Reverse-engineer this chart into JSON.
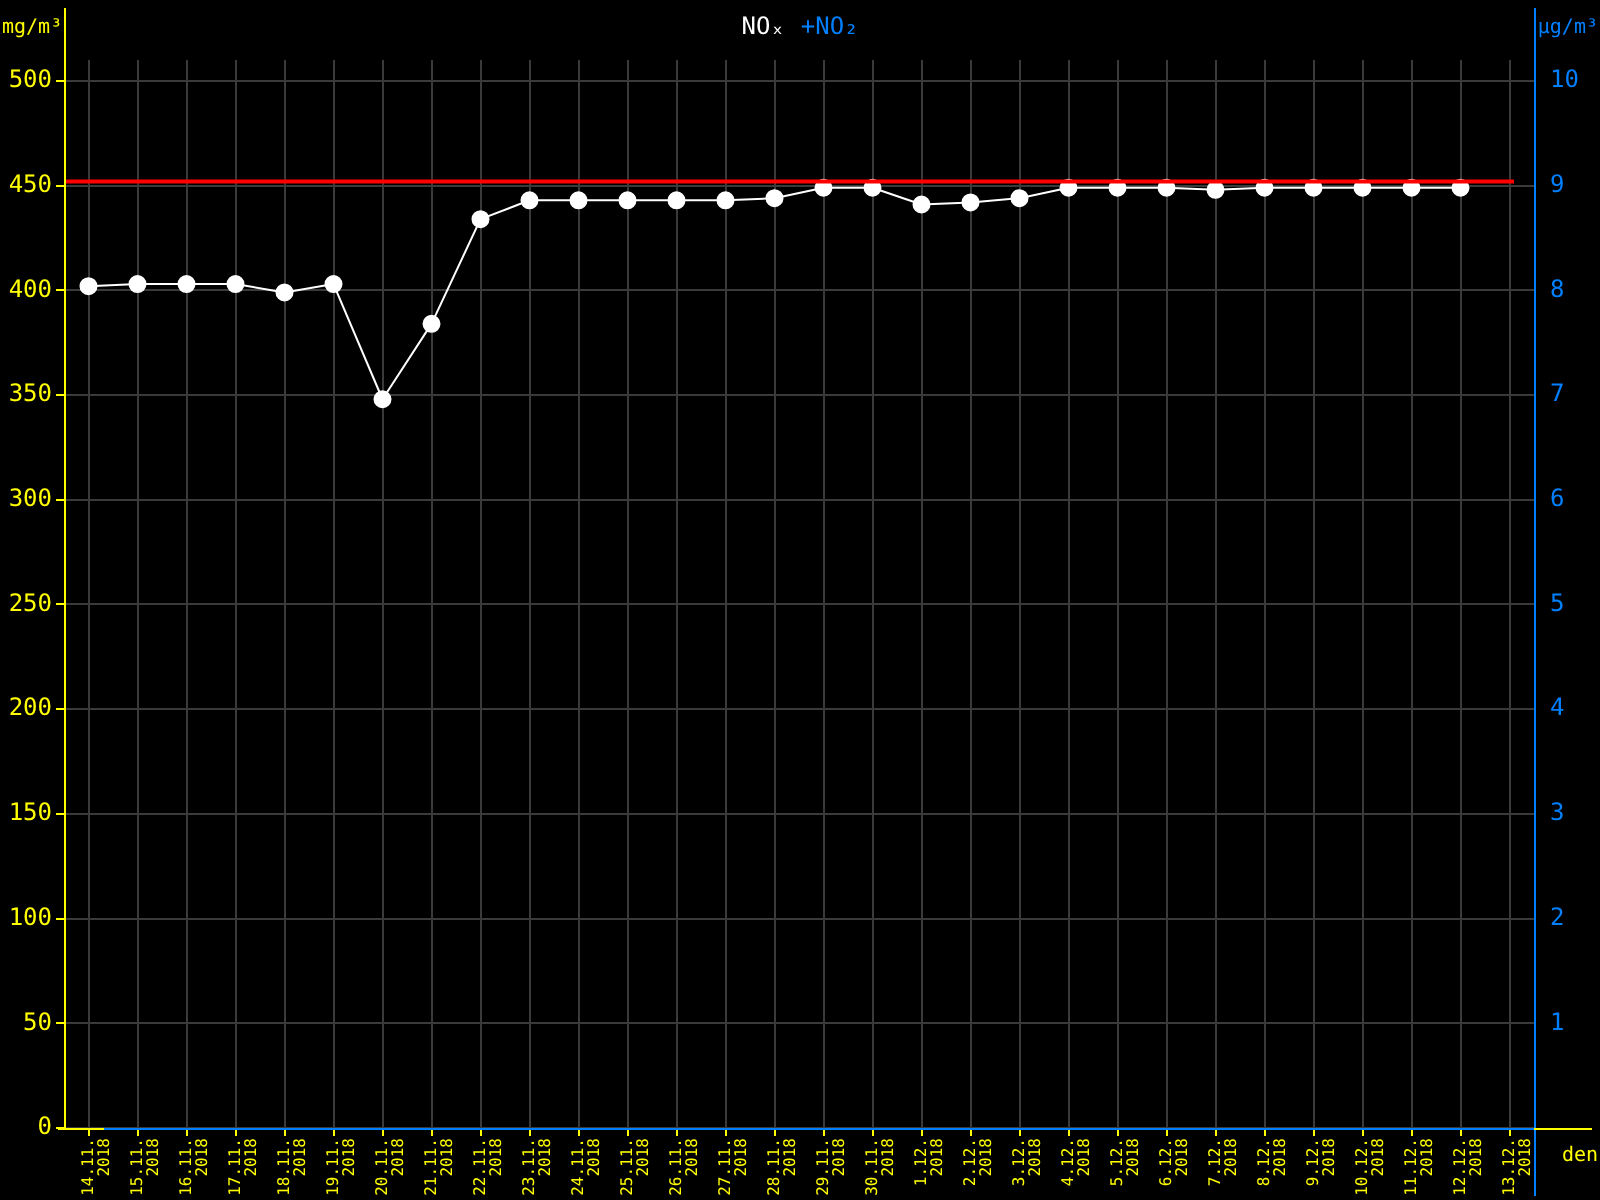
{
  "chart_data": {
    "type": "line",
    "legend": "top",
    "xlabel": "den",
    "ylabel": "mg/m³",
    "y2label": "µg/m³",
    "categories": [
      "14.11. 2018",
      "15.11. 2018",
      "16.11. 2018",
      "17.11. 2018",
      "18.11. 2018",
      "19.11. 2018",
      "20.11. 2018",
      "21.11. 2018",
      "22.11. 2018",
      "23.11. 2018",
      "24.11. 2018",
      "25.11. 2018",
      "26.11. 2018",
      "27.11. 2018",
      "28.11. 2018",
      "29.11. 2018",
      "30.11. 2018",
      "1.12. 2018",
      "2.12. 2018",
      "3.12. 2018",
      "4.12. 2018",
      "5.12. 2018",
      "6.12. 2018",
      "7.12. 2018",
      "8.12. 2018",
      "9.12. 2018",
      "10.12. 2018",
      "11.12. 2018",
      "12.12. 2018",
      "13.12. 2018"
    ],
    "series": [
      {
        "name": "NOₓ",
        "color": "#ffffff",
        "values": [
          402,
          403,
          403,
          403,
          399,
          403,
          348,
          384,
          434,
          443,
          443,
          443,
          443,
          443,
          444,
          449,
          449,
          441,
          442,
          444,
          449,
          449,
          449,
          448,
          449,
          449,
          449,
          449,
          449,
          null
        ]
      },
      {
        "name": "+NO₂",
        "color": "#0080ff",
        "axis": "y2",
        "values": [
          null,
          null,
          null,
          null,
          null,
          null,
          null,
          null,
          null,
          null,
          null,
          null,
          null,
          null,
          null,
          null,
          null,
          null,
          null,
          null,
          null,
          null,
          null,
          null,
          null,
          null,
          null,
          null,
          null,
          null
        ]
      }
    ],
    "ylim": [
      0,
      510
    ],
    "yticks": [
      0,
      50,
      100,
      150,
      200,
      250,
      300,
      350,
      400,
      450,
      500
    ],
    "y2lim": [
      0,
      10.2
    ],
    "y2ticks": [
      1,
      2,
      3,
      4,
      5,
      6,
      7,
      8,
      9,
      10
    ],
    "ref_lines": [
      {
        "axis": "y",
        "value": 452,
        "color": "#ff0000"
      }
    ],
    "grid": true,
    "marker": "circle",
    "line_style": "solid"
  }
}
